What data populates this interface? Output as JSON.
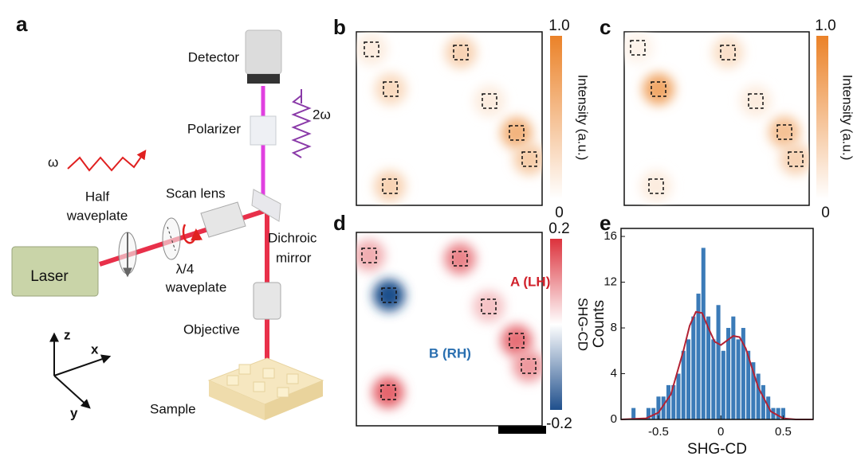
{
  "panel_labels": [
    "a",
    "b",
    "c",
    "d",
    "e"
  ],
  "setup": {
    "detector": "Detector",
    "polarizer": "Polarizer",
    "shg": "2ω",
    "fundamental": "ω",
    "half_waveplate": [
      "Half",
      "waveplate"
    ],
    "scan_lens": "Scan lens",
    "dichroic_mirror": [
      "Dichroic",
      "mirror"
    ],
    "laser": "Laser",
    "quarter_waveplate": [
      "λ/4",
      "waveplate"
    ],
    "objective": "Objective",
    "sample": "Sample",
    "axes": [
      "z",
      "x",
      "y"
    ]
  },
  "maps": [
    {
      "colorbar_label": "Intensity (a.u.)",
      "colorbar_lim": [
        0,
        1
      ],
      "colorbar_ticks": [
        {
          "value": 1,
          "label": "1.0"
        },
        0
      ],
      "colors": [
        "#ffffff",
        "#eb8228"
      ],
      "spots": [
        0.15,
        0.35,
        0.3,
        0.15,
        0.6,
        0.4,
        0.35
      ]
    },
    {
      "colorbar_label": "Intensity (a.u.)",
      "colorbar_lim": [
        0,
        1
      ],
      "colorbar_ticks": [
        {
          "value": 1,
          "label": "1.0"
        },
        0
      ],
      "colors": [
        "#ffffff",
        "#eb8228"
      ],
      "spots": [
        0.1,
        0.25,
        0.7,
        0.15,
        0.5,
        0.35,
        0.15
      ]
    },
    {
      "colorbar_label": "SHG-CD",
      "colorbar_lim": [
        -0.2,
        0.2
      ],
      "colorbar_ticks": [
        0.2,
        -0.2
      ],
      "colors": [
        "#1f4f8c",
        "#ffffff",
        "#dc323c"
      ],
      "spots": [
        0.08,
        0.12,
        -0.2,
        0.06,
        0.14,
        0.1,
        0.15
      ],
      "annotations": [
        "A (LH)",
        "B (RH)"
      ]
    }
  ],
  "chart_data": {
    "type": "histogram",
    "x_label": "SHG-CD",
    "y_label": "Counts",
    "color": "#3b7bb8",
    "bins": [
      -0.72,
      -0.68,
      -0.64,
      -0.6,
      -0.56,
      -0.52,
      -0.48,
      -0.44,
      -0.4,
      -0.36,
      -0.32,
      -0.28,
      -0.24,
      -0.2,
      -0.16,
      -0.12,
      -0.08,
      -0.04,
      0,
      0.04,
      0.08,
      0.12,
      0.16,
      0.2,
      0.24,
      0.28,
      0.32,
      0.36,
      0.4,
      0.44,
      0.48,
      0.52
    ],
    "counts": [
      1,
      0,
      0,
      1,
      1,
      2,
      2,
      3,
      3,
      4,
      6,
      7,
      9,
      11,
      15,
      9,
      7,
      10,
      6,
      8,
      9,
      7,
      8,
      6,
      5,
      4,
      3,
      2,
      1,
      1,
      1
    ],
    "fit": {
      "color": "#b22234",
      "x": [
        -0.8,
        -0.6,
        -0.5,
        -0.4,
        -0.3,
        -0.25,
        -0.2,
        -0.15,
        -0.1,
        -0.05,
        0,
        0.05,
        0.1,
        0.15,
        0.2,
        0.25,
        0.3,
        0.4,
        0.5,
        0.6,
        0.74
      ],
      "y": [
        0,
        0.1,
        0.6,
        2.2,
        6,
        8.2,
        9.4,
        9.3,
        8,
        6.8,
        6.5,
        6.9,
        7.3,
        7.2,
        6.2,
        4.5,
        2.8,
        0.7,
        0.1,
        0,
        0
      ]
    },
    "xlim": [
      -0.8,
      0.74
    ],
    "ylim": [
      0,
      16.7
    ],
    "xticks": [
      -0.5,
      0,
      0.5
    ],
    "yticks": [
      0,
      4,
      8,
      12,
      16
    ]
  }
}
